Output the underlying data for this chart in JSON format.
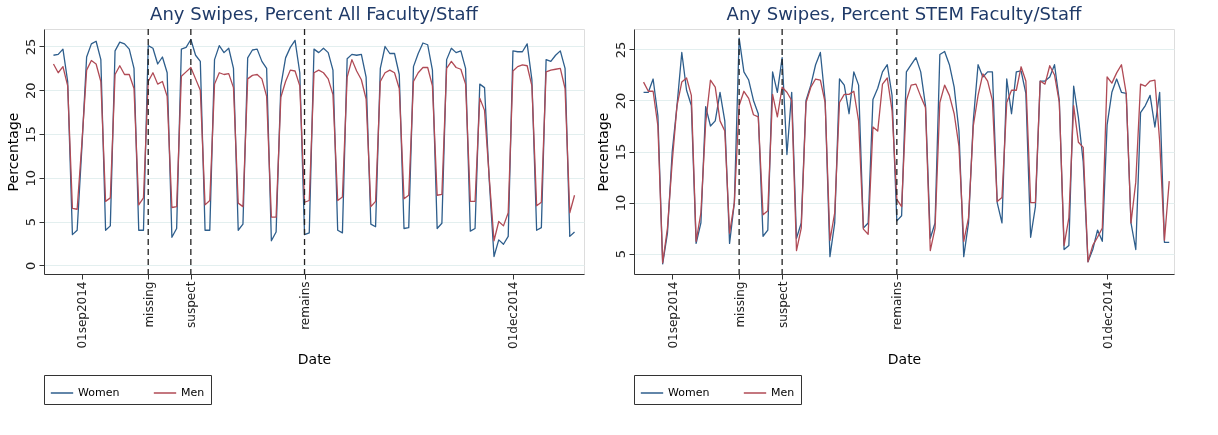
{
  "chart_data": [
    {
      "type": "line",
      "title": "Any Swipes, Percent All Faculty/Staff",
      "xlabel": "Date",
      "ylabel": "Percentage",
      "x": [
        "2014-08-26",
        "2014-08-27",
        "2014-08-28",
        "2014-08-29",
        "2014-08-30",
        "2014-08-31",
        "2014-09-01",
        "2014-09-02",
        "2014-09-03",
        "2014-09-04",
        "2014-09-05",
        "2014-09-06",
        "2014-09-07",
        "2014-09-08",
        "2014-09-09",
        "2014-09-10",
        "2014-09-11",
        "2014-09-12",
        "2014-09-13",
        "2014-09-14",
        "2014-09-15",
        "2014-09-16",
        "2014-09-17",
        "2014-09-18",
        "2014-09-19",
        "2014-09-20",
        "2014-09-21",
        "2014-09-22",
        "2014-09-23",
        "2014-09-24",
        "2014-09-25",
        "2014-09-26",
        "2014-09-27",
        "2014-09-28",
        "2014-09-29",
        "2014-09-30",
        "2014-10-01",
        "2014-10-02",
        "2014-10-03",
        "2014-10-04",
        "2014-10-05",
        "2014-10-06",
        "2014-10-07",
        "2014-10-08",
        "2014-10-09",
        "2014-10-10",
        "2014-10-11",
        "2014-10-12",
        "2014-10-13",
        "2014-10-14",
        "2014-10-15",
        "2014-10-16",
        "2014-10-17",
        "2014-10-18",
        "2014-10-19",
        "2014-10-20",
        "2014-10-21",
        "2014-10-22",
        "2014-10-23",
        "2014-10-24",
        "2014-10-25",
        "2014-10-26",
        "2014-10-27",
        "2014-10-28",
        "2014-10-29",
        "2014-10-30",
        "2014-10-31",
        "2014-11-01",
        "2014-11-02",
        "2014-11-03",
        "2014-11-04",
        "2014-11-05",
        "2014-11-06",
        "2014-11-07",
        "2014-11-08",
        "2014-11-09",
        "2014-11-10",
        "2014-11-11",
        "2014-11-12",
        "2014-11-13",
        "2014-11-14",
        "2014-11-15",
        "2014-11-16",
        "2014-11-17",
        "2014-11-18",
        "2014-11-19",
        "2014-11-20",
        "2014-11-21",
        "2014-11-22",
        "2014-11-23",
        "2014-11-24",
        "2014-11-25",
        "2014-11-26",
        "2014-11-27",
        "2014-11-28",
        "2014-11-29",
        "2014-11-30",
        "2014-12-01",
        "2014-12-02",
        "2014-12-03",
        "2014-12-04",
        "2014-12-05",
        "2014-12-06",
        "2014-12-07",
        "2014-12-08",
        "2014-12-09",
        "2014-12-10",
        "2014-12-11",
        "2014-12-12",
        "2014-12-13",
        "2014-12-14"
      ],
      "series": [
        {
          "name": "Women",
          "color": "#2e5e8c",
          "values": [
            24,
            24.1,
            24.7,
            21,
            3.5,
            4,
            13.5,
            23.8,
            25.3,
            25.6,
            23.5,
            4,
            4.5,
            24.5,
            25.5,
            25.3,
            24.7,
            22.5,
            4,
            4,
            25.1,
            24.8,
            23,
            23.8,
            22,
            3.2,
            4.2,
            24.7,
            24.9,
            25.8,
            24,
            23.3,
            4,
            4,
            23.5,
            25.1,
            24.3,
            24.8,
            22.5,
            4,
            4.7,
            23.7,
            24.6,
            24.7,
            23.3,
            22.5,
            2.8,
            3.8,
            20.5,
            23.7,
            24.9,
            25.7,
            22,
            3.5,
            3.7,
            24.7,
            24.3,
            24.8,
            24.3,
            22.3,
            4,
            3.7,
            23.6,
            24.1,
            24,
            24.1,
            21.5,
            4.7,
            4.4,
            22.5,
            25,
            24.2,
            24.2,
            21.8,
            4.2,
            4.3,
            22.7,
            24.2,
            25.4,
            25.2,
            22.3,
            4.2,
            4.8,
            23.5,
            24.8,
            24.3,
            24.5,
            22.5,
            3.9,
            4.2,
            20.7,
            20.3,
            9.7,
            1,
            2.9,
            2.4,
            3.3,
            24.5,
            24.4,
            24.4,
            25.3,
            21.2,
            4,
            4.3,
            23.5,
            23.3,
            24,
            24.5,
            22.5,
            3.3,
            3.8
          ]
        },
        {
          "name": "Men",
          "color": "#b04a55",
          "values": [
            23,
            22,
            22.7,
            20.5,
            6.5,
            6.4,
            14,
            22.3,
            23.4,
            23,
            21,
            7.3,
            7.7,
            21.8,
            22.8,
            21.8,
            21.8,
            20.2,
            6.9,
            7.7,
            21,
            22,
            20.7,
            21,
            19.3,
            6.6,
            6.7,
            21.6,
            22.1,
            22.6,
            21.3,
            20,
            6.9,
            7.4,
            20.7,
            22,
            21.8,
            21.9,
            20.3,
            7.1,
            6.7,
            21.3,
            21.7,
            21.8,
            21.3,
            19.3,
            5.5,
            5.5,
            19.2,
            21,
            22.3,
            22.2,
            20.5,
            7.2,
            7.4,
            22,
            22.3,
            22,
            21.3,
            19.5,
            7.4,
            7.8,
            21.5,
            23.5,
            22.2,
            21.2,
            19,
            6.7,
            7.3,
            21,
            22,
            22.3,
            22,
            20.2,
            7.6,
            8,
            21,
            22,
            22.6,
            22.6,
            20.5,
            8,
            8.1,
            22.5,
            23.3,
            22.6,
            22.4,
            20.7,
            7.3,
            7.3,
            19.1,
            17.7,
            10,
            2.8,
            5,
            4.5,
            6,
            22.2,
            22.7,
            22.9,
            22.8,
            20.5,
            6.8,
            7.2,
            22.1,
            22.3,
            22.4,
            22.5,
            20.2,
            6,
            8
          ]
        }
      ],
      "xlim": [
        "2014-08-24",
        "2014-12-16"
      ],
      "ylim": [
        -1,
        27
      ],
      "yticks": [
        0,
        5,
        10,
        15,
        20,
        25
      ],
      "xticks": [
        {
          "value": "2014-09-01",
          "label": "01sep2014"
        },
        {
          "value": "2014-09-15",
          "label": "missing"
        },
        {
          "value": "2014-09-24",
          "label": "suspect"
        },
        {
          "value": "2014-10-18",
          "label": "remains"
        },
        {
          "value": "2014-12-01",
          "label": "01dec2014"
        }
      ],
      "ref_lines": [
        {
          "axis": "x",
          "value": "2014-09-15",
          "line_style": "dashed",
          "color": "#222222"
        },
        {
          "axis": "x",
          "value": "2014-09-24",
          "line_style": "dashed",
          "color": "#222222"
        },
        {
          "axis": "x",
          "value": "2014-10-18",
          "line_style": "dashed",
          "color": "#222222"
        }
      ],
      "grid": "y",
      "legend": "bottom",
      "line_style": "solid"
    },
    {
      "type": "line",
      "title": "Any Swipes, Percent STEM Faculty/Staff",
      "xlabel": "Date",
      "ylabel": "Percentage",
      "x": [
        "2014-08-26",
        "2014-08-27",
        "2014-08-28",
        "2014-08-29",
        "2014-08-30",
        "2014-08-31",
        "2014-09-01",
        "2014-09-02",
        "2014-09-03",
        "2014-09-04",
        "2014-09-05",
        "2014-09-06",
        "2014-09-07",
        "2014-09-08",
        "2014-09-09",
        "2014-09-10",
        "2014-09-11",
        "2014-09-12",
        "2014-09-13",
        "2014-09-14",
        "2014-09-15",
        "2014-09-16",
        "2014-09-17",
        "2014-09-18",
        "2014-09-19",
        "2014-09-20",
        "2014-09-21",
        "2014-09-22",
        "2014-09-23",
        "2014-09-24",
        "2014-09-25",
        "2014-09-26",
        "2014-09-27",
        "2014-09-28",
        "2014-09-29",
        "2014-09-30",
        "2014-10-01",
        "2014-10-02",
        "2014-10-03",
        "2014-10-04",
        "2014-10-05",
        "2014-10-06",
        "2014-10-07",
        "2014-10-08",
        "2014-10-09",
        "2014-10-10",
        "2014-10-11",
        "2014-10-12",
        "2014-10-13",
        "2014-10-14",
        "2014-10-15",
        "2014-10-16",
        "2014-10-17",
        "2014-10-18",
        "2014-10-19",
        "2014-10-20",
        "2014-10-21",
        "2014-10-22",
        "2014-10-23",
        "2014-10-24",
        "2014-10-25",
        "2014-10-26",
        "2014-10-27",
        "2014-10-28",
        "2014-10-29",
        "2014-10-30",
        "2014-10-31",
        "2014-11-01",
        "2014-11-02",
        "2014-11-03",
        "2014-11-04",
        "2014-11-05",
        "2014-11-06",
        "2014-11-07",
        "2014-11-08",
        "2014-11-09",
        "2014-11-10",
        "2014-11-11",
        "2014-11-12",
        "2014-11-13",
        "2014-11-14",
        "2014-11-15",
        "2014-11-16",
        "2014-11-17",
        "2014-11-18",
        "2014-11-19",
        "2014-11-20",
        "2014-11-21",
        "2014-11-22",
        "2014-11-23",
        "2014-11-24",
        "2014-11-25",
        "2014-11-26",
        "2014-11-27",
        "2014-11-28",
        "2014-11-29",
        "2014-11-30",
        "2014-12-01",
        "2014-12-02",
        "2014-12-03",
        "2014-12-04",
        "2014-12-05",
        "2014-12-06",
        "2014-12-07",
        "2014-12-08",
        "2014-12-09",
        "2014-12-10",
        "2014-12-11",
        "2014-12-12",
        "2014-12-13",
        "2014-12-14"
      ],
      "series": [
        {
          "name": "Women",
          "color": "#2e5e8c",
          "values": [
            20.8,
            20.8,
            22.1,
            18.5,
            4,
            7,
            15,
            19.5,
            24.7,
            21,
            19.5,
            6,
            8,
            19.4,
            17.5,
            18,
            20.8,
            18,
            6,
            10,
            26.1,
            22.8,
            22,
            20,
            18.7,
            6.7,
            7.3,
            22.8,
            20.8,
            24.2,
            14.7,
            20.8,
            6.5,
            8,
            20,
            21.5,
            23.5,
            24.7,
            20,
            4.7,
            8,
            22.1,
            21.5,
            18.7,
            22.8,
            21.5,
            7.5,
            8,
            20.1,
            21.2,
            22.8,
            23.5,
            20.5,
            8.2,
            8.7,
            22.8,
            23.5,
            24.2,
            22.8,
            19.5,
            6.5,
            8,
            24.5,
            24.8,
            23.5,
            21.3,
            17,
            4.7,
            8,
            18,
            23.5,
            22.3,
            22.8,
            22.8,
            10,
            8,
            22.1,
            18.7,
            22.8,
            22.9,
            20.7,
            6.6,
            9.6,
            21.9,
            21.9,
            22.3,
            23.5,
            20,
            5.4,
            5.8,
            21.4,
            18.3,
            14,
            4.2,
            5.4,
            7.3,
            6.2,
            17.6,
            20.8,
            22.1,
            20.8,
            20.7,
            8,
            5.4,
            18.8,
            19.5,
            20.5,
            17.4,
            20.8,
            6.1,
            6.1
          ]
        },
        {
          "name": "Men",
          "color": "#b04a55",
          "values": [
            21.8,
            20.9,
            20.9,
            17.5,
            4.1,
            7.5,
            14,
            19.5,
            21.8,
            22.2,
            20.5,
            6.2,
            9,
            17.8,
            22,
            21.3,
            18,
            17,
            7,
            10,
            19.5,
            20.9,
            20.2,
            18.6,
            18.4,
            8.8,
            9.2,
            20.6,
            18.4,
            21.3,
            20.8,
            20,
            5.3,
            7.5,
            19.8,
            21.3,
            22.1,
            22,
            19.8,
            6.3,
            9,
            19.8,
            20.6,
            20.6,
            20.9,
            18,
            7.4,
            6.9,
            17.4,
            17,
            21.6,
            22.2,
            19,
            10.3,
            9.6,
            20,
            21.5,
            21.6,
            20.4,
            19.3,
            5.3,
            7.5,
            19.8,
            21.5,
            20.5,
            18.7,
            15.5,
            6.2,
            8.5,
            17.5,
            20.5,
            22.6,
            21.9,
            20,
            10.1,
            10.5,
            19.8,
            21,
            21,
            23.3,
            21.9,
            10,
            10,
            21.9,
            21.6,
            23.4,
            22.5,
            19.8,
            5.8,
            8.5,
            19.5,
            15.9,
            15.4,
            4.2,
            5.8,
            6.6,
            7.5,
            22.3,
            21.7,
            22.7,
            23.5,
            20.7,
            8,
            12,
            21.6,
            21.4,
            21.9,
            22,
            16,
            6.3,
            12.1
          ]
        }
      ],
      "xlim": [
        "2014-08-24",
        "2014-12-15"
      ],
      "ylim": [
        3,
        27
      ],
      "yticks": [
        5,
        10,
        15,
        20,
        25
      ],
      "xticks": [
        {
          "value": "2014-09-01",
          "label": "01sep2014"
        },
        {
          "value": "2014-09-15",
          "label": "missing"
        },
        {
          "value": "2014-09-24",
          "label": "suspect"
        },
        {
          "value": "2014-10-18",
          "label": "remains"
        },
        {
          "value": "2014-12-01",
          "label": "01dec2014"
        }
      ],
      "ref_lines": [
        {
          "axis": "x",
          "value": "2014-09-15",
          "line_style": "dashed",
          "color": "#222222"
        },
        {
          "axis": "x",
          "value": "2014-09-24",
          "line_style": "dashed",
          "color": "#222222"
        },
        {
          "axis": "x",
          "value": "2014-10-18",
          "line_style": "dashed",
          "color": "#222222"
        }
      ],
      "grid": "y",
      "legend": "bottom",
      "line_style": "solid"
    }
  ]
}
